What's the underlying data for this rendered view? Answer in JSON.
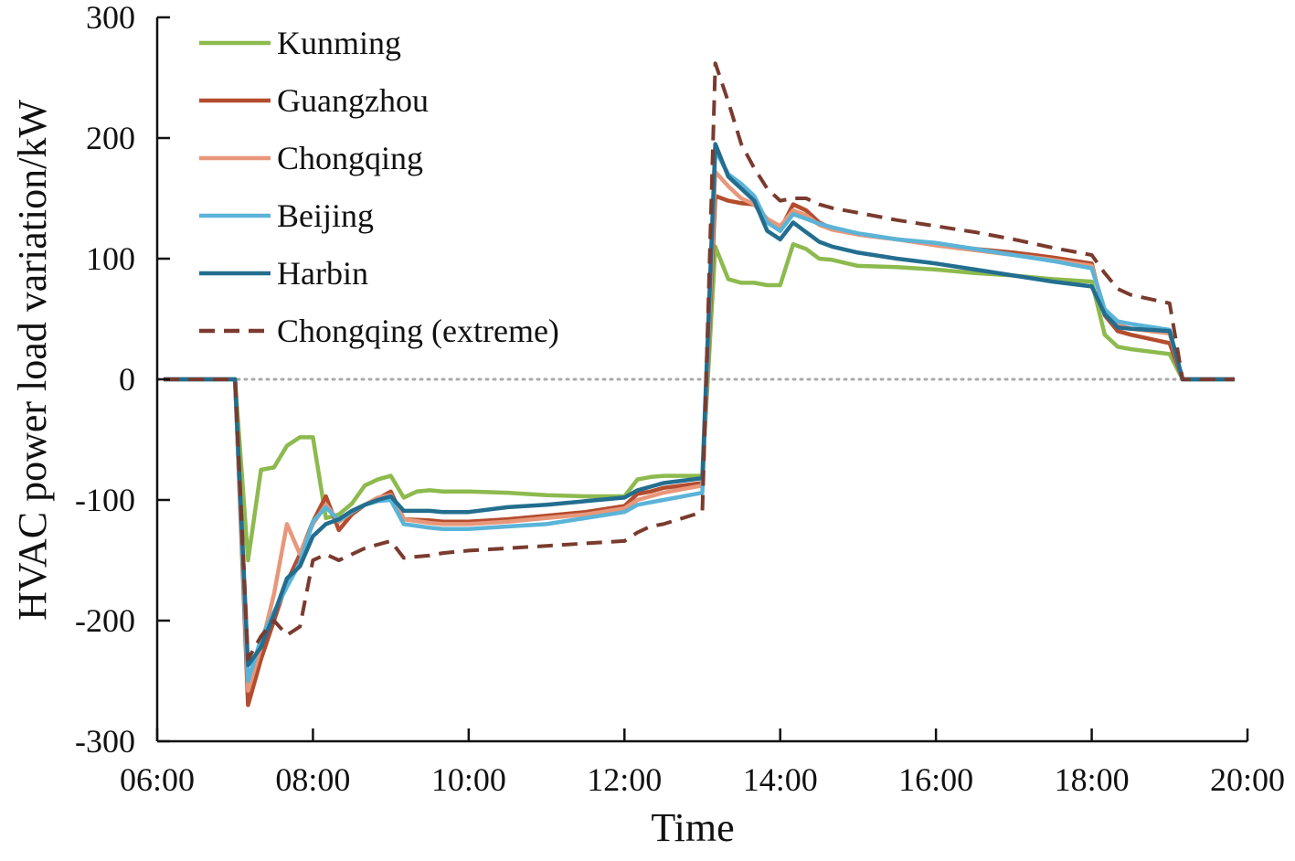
{
  "chart_data": {
    "type": "line",
    "title": "",
    "xlabel": "Time",
    "ylabel": "HVAC power load variation/kW",
    "xlim": [
      "06:00",
      "20:00"
    ],
    "ylim": [
      -300,
      300
    ],
    "x_ticks": [
      "06:00",
      "08:00",
      "10:00",
      "12:00",
      "14:00",
      "16:00",
      "18:00",
      "20:00"
    ],
    "y_ticks": [
      "300",
      "200",
      "100",
      "0",
      "-100",
      "-200",
      "-300"
    ],
    "grid": false,
    "zero_line": "dotted",
    "legend_position": "top-left",
    "series": [
      {
        "name": "Kunming",
        "color": "#8DBA4E",
        "dash": "solid",
        "points": [
          [
            "06:05",
            0
          ],
          [
            "07:00",
            0
          ],
          [
            "07:10",
            -150
          ],
          [
            "07:20",
            -75
          ],
          [
            "07:30",
            -73
          ],
          [
            "07:40",
            -55
          ],
          [
            "07:50",
            -48
          ],
          [
            "08:00",
            -48
          ],
          [
            "08:10",
            -115
          ],
          [
            "08:20",
            -112
          ],
          [
            "08:30",
            -103
          ],
          [
            "08:40",
            -88
          ],
          [
            "08:50",
            -83
          ],
          [
            "09:00",
            -80
          ],
          [
            "09:10",
            -98
          ],
          [
            "09:20",
            -93
          ],
          [
            "09:30",
            -92
          ],
          [
            "09:40",
            -93
          ],
          [
            "10:00",
            -93
          ],
          [
            "10:30",
            -94
          ],
          [
            "11:00",
            -96
          ],
          [
            "11:30",
            -97
          ],
          [
            "12:00",
            -97
          ],
          [
            "12:10",
            -83
          ],
          [
            "12:20",
            -81
          ],
          [
            "12:30",
            -80
          ],
          [
            "13:00",
            -80
          ],
          [
            "13:10",
            110
          ],
          [
            "13:20",
            83
          ],
          [
            "13:30",
            80
          ],
          [
            "13:40",
            80
          ],
          [
            "13:50",
            78
          ],
          [
            "14:00",
            78
          ],
          [
            "14:10",
            112
          ],
          [
            "14:20",
            108
          ],
          [
            "14:30",
            100
          ],
          [
            "14:40",
            99
          ],
          [
            "15:00",
            94
          ],
          [
            "15:30",
            93
          ],
          [
            "16:00",
            91
          ],
          [
            "16:30",
            88
          ],
          [
            "17:00",
            86
          ],
          [
            "17:30",
            83
          ],
          [
            "18:00",
            81
          ],
          [
            "18:10",
            37
          ],
          [
            "18:20",
            27
          ],
          [
            "18:30",
            25
          ],
          [
            "19:00",
            21
          ],
          [
            "19:10",
            0
          ],
          [
            "19:50",
            0
          ]
        ]
      },
      {
        "name": "Guangzhou",
        "color": "#B44C2E",
        "dash": "solid",
        "points": [
          [
            "06:05",
            0
          ],
          [
            "07:00",
            0
          ],
          [
            "07:10",
            -270
          ],
          [
            "07:20",
            -232
          ],
          [
            "07:30",
            -200
          ],
          [
            "07:40",
            -168
          ],
          [
            "07:50",
            -145
          ],
          [
            "08:00",
            -118
          ],
          [
            "08:10",
            -97
          ],
          [
            "08:20",
            -125
          ],
          [
            "08:30",
            -112
          ],
          [
            "08:40",
            -104
          ],
          [
            "08:50",
            -99
          ],
          [
            "09:00",
            -93
          ],
          [
            "09:10",
            -116
          ],
          [
            "09:30",
            -117
          ],
          [
            "09:40",
            -118
          ],
          [
            "10:00",
            -118
          ],
          [
            "10:30",
            -116
          ],
          [
            "11:00",
            -113
          ],
          [
            "11:30",
            -110
          ],
          [
            "12:00",
            -105
          ],
          [
            "12:10",
            -95
          ],
          [
            "12:20",
            -93
          ],
          [
            "12:30",
            -90
          ],
          [
            "13:00",
            -86
          ],
          [
            "13:10",
            152
          ],
          [
            "13:20",
            148
          ],
          [
            "13:30",
            146
          ],
          [
            "13:40",
            145
          ],
          [
            "13:50",
            132
          ],
          [
            "14:00",
            124
          ],
          [
            "14:10",
            145
          ],
          [
            "14:20",
            140
          ],
          [
            "14:30",
            130
          ],
          [
            "14:40",
            125
          ],
          [
            "15:00",
            120
          ],
          [
            "15:30",
            116
          ],
          [
            "16:00",
            112
          ],
          [
            "16:30",
            108
          ],
          [
            "17:00",
            105
          ],
          [
            "17:30",
            101
          ],
          [
            "18:00",
            96
          ],
          [
            "18:10",
            53
          ],
          [
            "18:20",
            40
          ],
          [
            "18:30",
            37
          ],
          [
            "19:00",
            30
          ],
          [
            "19:10",
            0
          ],
          [
            "19:50",
            0
          ]
        ]
      },
      {
        "name": "Chongqing",
        "color": "#E8977A",
        "dash": "solid",
        "points": [
          [
            "06:05",
            0
          ],
          [
            "07:00",
            0
          ],
          [
            "07:10",
            -258
          ],
          [
            "07:20",
            -222
          ],
          [
            "07:30",
            -178
          ],
          [
            "07:40",
            -120
          ],
          [
            "07:50",
            -145
          ],
          [
            "08:00",
            -120
          ],
          [
            "08:10",
            -104
          ],
          [
            "08:20",
            -118
          ],
          [
            "08:30",
            -110
          ],
          [
            "08:40",
            -104
          ],
          [
            "08:50",
            -98
          ],
          [
            "09:00",
            -96
          ],
          [
            "09:10",
            -116
          ],
          [
            "09:30",
            -119
          ],
          [
            "09:40",
            -120
          ],
          [
            "10:00",
            -120
          ],
          [
            "10:30",
            -118
          ],
          [
            "11:00",
            -115
          ],
          [
            "11:30",
            -112
          ],
          [
            "12:00",
            -107
          ],
          [
            "12:10",
            -100
          ],
          [
            "12:20",
            -97
          ],
          [
            "12:30",
            -94
          ],
          [
            "13:00",
            -88
          ],
          [
            "13:10",
            172
          ],
          [
            "13:20",
            160
          ],
          [
            "13:30",
            150
          ],
          [
            "13:40",
            145
          ],
          [
            "13:50",
            133
          ],
          [
            "14:00",
            127
          ],
          [
            "14:10",
            140
          ],
          [
            "14:20",
            136
          ],
          [
            "14:30",
            128
          ],
          [
            "14:40",
            124
          ],
          [
            "15:00",
            120
          ],
          [
            "15:30",
            116
          ],
          [
            "16:00",
            111
          ],
          [
            "16:30",
            107
          ],
          [
            "17:00",
            103
          ],
          [
            "17:30",
            99
          ],
          [
            "18:00",
            94
          ],
          [
            "18:10",
            57
          ],
          [
            "18:20",
            45
          ],
          [
            "18:30",
            42
          ],
          [
            "19:00",
            38
          ],
          [
            "19:10",
            0
          ],
          [
            "19:50",
            0
          ]
        ]
      },
      {
        "name": "Beijing",
        "color": "#5BB4D8",
        "dash": "solid",
        "points": [
          [
            "06:05",
            0
          ],
          [
            "07:00",
            0
          ],
          [
            "07:10",
            -250
          ],
          [
            "07:20",
            -215
          ],
          [
            "07:30",
            -193
          ],
          [
            "07:40",
            -172
          ],
          [
            "07:50",
            -152
          ],
          [
            "08:00",
            -118
          ],
          [
            "08:10",
            -106
          ],
          [
            "08:20",
            -117
          ],
          [
            "08:30",
            -110
          ],
          [
            "08:40",
            -104
          ],
          [
            "08:50",
            -101
          ],
          [
            "09:00",
            -100
          ],
          [
            "09:10",
            -120
          ],
          [
            "09:30",
            -123
          ],
          [
            "09:40",
            -124
          ],
          [
            "10:00",
            -124
          ],
          [
            "10:30",
            -122
          ],
          [
            "11:00",
            -120
          ],
          [
            "11:30",
            -115
          ],
          [
            "12:00",
            -110
          ],
          [
            "12:10",
            -104
          ],
          [
            "12:20",
            -102
          ],
          [
            "12:30",
            -100
          ],
          [
            "13:00",
            -94
          ],
          [
            "13:10",
            190
          ],
          [
            "13:20",
            170
          ],
          [
            "13:30",
            162
          ],
          [
            "13:40",
            152
          ],
          [
            "13:50",
            130
          ],
          [
            "14:00",
            123
          ],
          [
            "14:10",
            137
          ],
          [
            "14:20",
            133
          ],
          [
            "14:30",
            129
          ],
          [
            "14:40",
            126
          ],
          [
            "15:00",
            121
          ],
          [
            "15:30",
            116
          ],
          [
            "16:00",
            113
          ],
          [
            "16:30",
            108
          ],
          [
            "17:00",
            103
          ],
          [
            "17:30",
            98
          ],
          [
            "18:00",
            92
          ],
          [
            "18:10",
            58
          ],
          [
            "18:20",
            48
          ],
          [
            "18:30",
            46
          ],
          [
            "19:00",
            41
          ],
          [
            "19:10",
            0
          ],
          [
            "19:50",
            0
          ]
        ]
      },
      {
        "name": "Harbin",
        "color": "#236E8F",
        "dash": "solid",
        "points": [
          [
            "06:05",
            0
          ],
          [
            "07:00",
            0
          ],
          [
            "07:10",
            -237
          ],
          [
            "07:20",
            -222
          ],
          [
            "07:30",
            -195
          ],
          [
            "07:40",
            -165
          ],
          [
            "07:50",
            -155
          ],
          [
            "08:00",
            -130
          ],
          [
            "08:10",
            -120
          ],
          [
            "08:20",
            -116
          ],
          [
            "08:30",
            -109
          ],
          [
            "08:40",
            -104
          ],
          [
            "08:50",
            -100
          ],
          [
            "09:00",
            -97
          ],
          [
            "09:10",
            -109
          ],
          [
            "09:30",
            -109
          ],
          [
            "09:40",
            -110
          ],
          [
            "10:00",
            -110
          ],
          [
            "10:30",
            -106
          ],
          [
            "11:00",
            -104
          ],
          [
            "11:30",
            -101
          ],
          [
            "12:00",
            -98
          ],
          [
            "12:10",
            -92
          ],
          [
            "12:20",
            -89
          ],
          [
            "12:30",
            -86
          ],
          [
            "13:00",
            -82
          ],
          [
            "13:10",
            195
          ],
          [
            "13:20",
            168
          ],
          [
            "13:30",
            158
          ],
          [
            "13:40",
            148
          ],
          [
            "13:50",
            123
          ],
          [
            "14:00",
            116
          ],
          [
            "14:10",
            130
          ],
          [
            "14:20",
            122
          ],
          [
            "14:30",
            114
          ],
          [
            "14:40",
            110
          ],
          [
            "15:00",
            105
          ],
          [
            "15:30",
            100
          ],
          [
            "16:00",
            96
          ],
          [
            "16:30",
            91
          ],
          [
            "17:00",
            86
          ],
          [
            "17:30",
            81
          ],
          [
            "18:00",
            77
          ],
          [
            "18:10",
            54
          ],
          [
            "18:20",
            43
          ],
          [
            "18:30",
            42
          ],
          [
            "19:00",
            40
          ],
          [
            "19:10",
            0
          ],
          [
            "19:50",
            0
          ]
        ]
      },
      {
        "name": "Chongqing (extreme)",
        "color": "#7A3B2E",
        "dash": "dashed",
        "points": [
          [
            "06:05",
            0
          ],
          [
            "07:00",
            0
          ],
          [
            "07:10",
            -232
          ],
          [
            "07:20",
            -213
          ],
          [
            "07:30",
            -200
          ],
          [
            "07:40",
            -212
          ],
          [
            "07:50",
            -205
          ],
          [
            "08:00",
            -150
          ],
          [
            "08:10",
            -145
          ],
          [
            "08:20",
            -150
          ],
          [
            "08:30",
            -145
          ],
          [
            "08:40",
            -140
          ],
          [
            "08:50",
            -137
          ],
          [
            "09:00",
            -134
          ],
          [
            "09:10",
            -148
          ],
          [
            "09:30",
            -146
          ],
          [
            "09:40",
            -144
          ],
          [
            "10:00",
            -142
          ],
          [
            "10:30",
            -140
          ],
          [
            "11:00",
            -138
          ],
          [
            "11:30",
            -136
          ],
          [
            "12:00",
            -134
          ],
          [
            "12:10",
            -127
          ],
          [
            "12:20",
            -122
          ],
          [
            "12:30",
            -120
          ],
          [
            "13:00",
            -110
          ],
          [
            "13:10",
            262
          ],
          [
            "13:20",
            230
          ],
          [
            "13:30",
            195
          ],
          [
            "13:40",
            175
          ],
          [
            "13:50",
            158
          ],
          [
            "14:00",
            148
          ],
          [
            "14:10",
            150
          ],
          [
            "14:20",
            150
          ],
          [
            "14:30",
            145
          ],
          [
            "14:40",
            142
          ],
          [
            "15:00",
            138
          ],
          [
            "15:30",
            132
          ],
          [
            "16:00",
            127
          ],
          [
            "16:30",
            122
          ],
          [
            "17:00",
            116
          ],
          [
            "17:30",
            109
          ],
          [
            "18:00",
            103
          ],
          [
            "18:10",
            88
          ],
          [
            "18:20",
            75
          ],
          [
            "18:30",
            70
          ],
          [
            "19:00",
            63
          ],
          [
            "19:10",
            0
          ],
          [
            "19:50",
            0
          ]
        ]
      }
    ]
  }
}
